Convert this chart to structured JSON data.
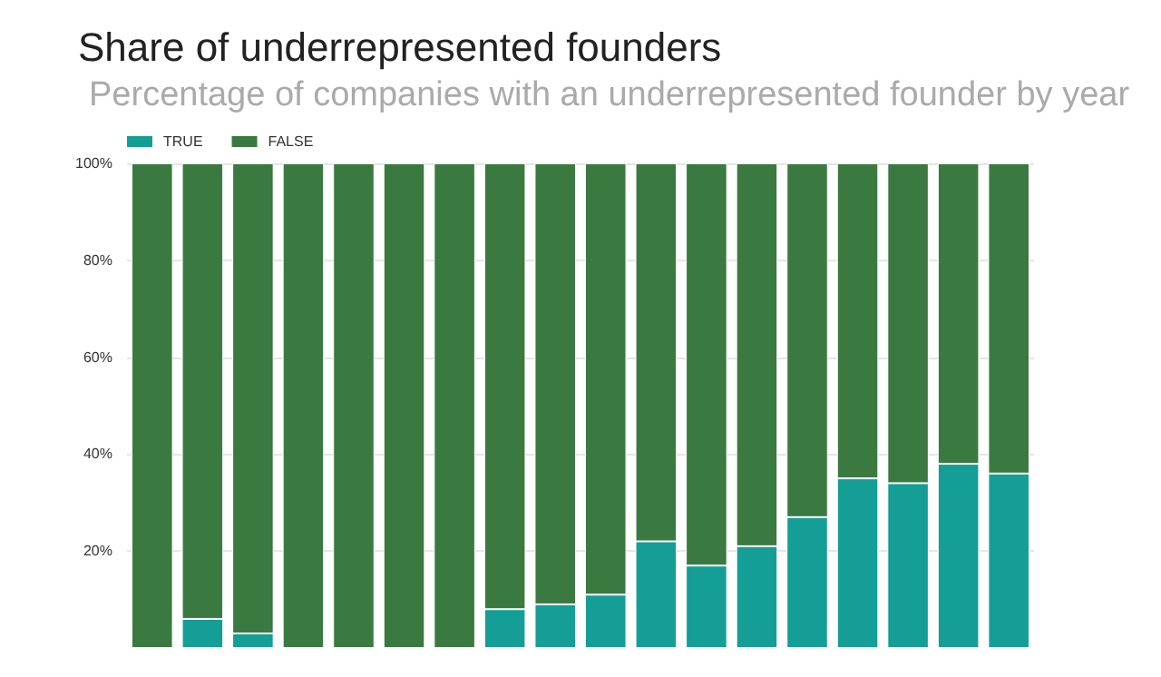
{
  "chart_data": {
    "type": "bar",
    "title": "Share of underrepresented founders",
    "subtitle": "Percentage of companies with an underrepresented founder by year",
    "categories": [
      null,
      null,
      null,
      null,
      null,
      null,
      null,
      null,
      null,
      null,
      null,
      null,
      null,
      null,
      null,
      null,
      null,
      null
    ],
    "stacked": true,
    "series": [
      {
        "name": "TRUE",
        "color": "#159e96",
        "values": [
          0,
          6,
          3,
          0,
          0,
          0,
          0,
          8,
          9,
          11,
          22,
          17,
          21,
          27,
          35,
          34,
          38,
          36
        ]
      },
      {
        "name": "FALSE",
        "color": "#3a7a40",
        "values": [
          100,
          94,
          97,
          100,
          100,
          100,
          100,
          92,
          91,
          89,
          78,
          83,
          79,
          73,
          65,
          66,
          62,
          64
        ]
      }
    ],
    "ylim": [
      0,
      100
    ],
    "yticks": [
      {
        "value": 20,
        "label": "20%"
      },
      {
        "value": 40,
        "label": "40%"
      },
      {
        "value": 60,
        "label": "60%"
      },
      {
        "value": 80,
        "label": "80%"
      },
      {
        "value": 100,
        "label": "100%"
      }
    ],
    "grid": "y",
    "legend": "top left",
    "tick_labels": "y"
  }
}
